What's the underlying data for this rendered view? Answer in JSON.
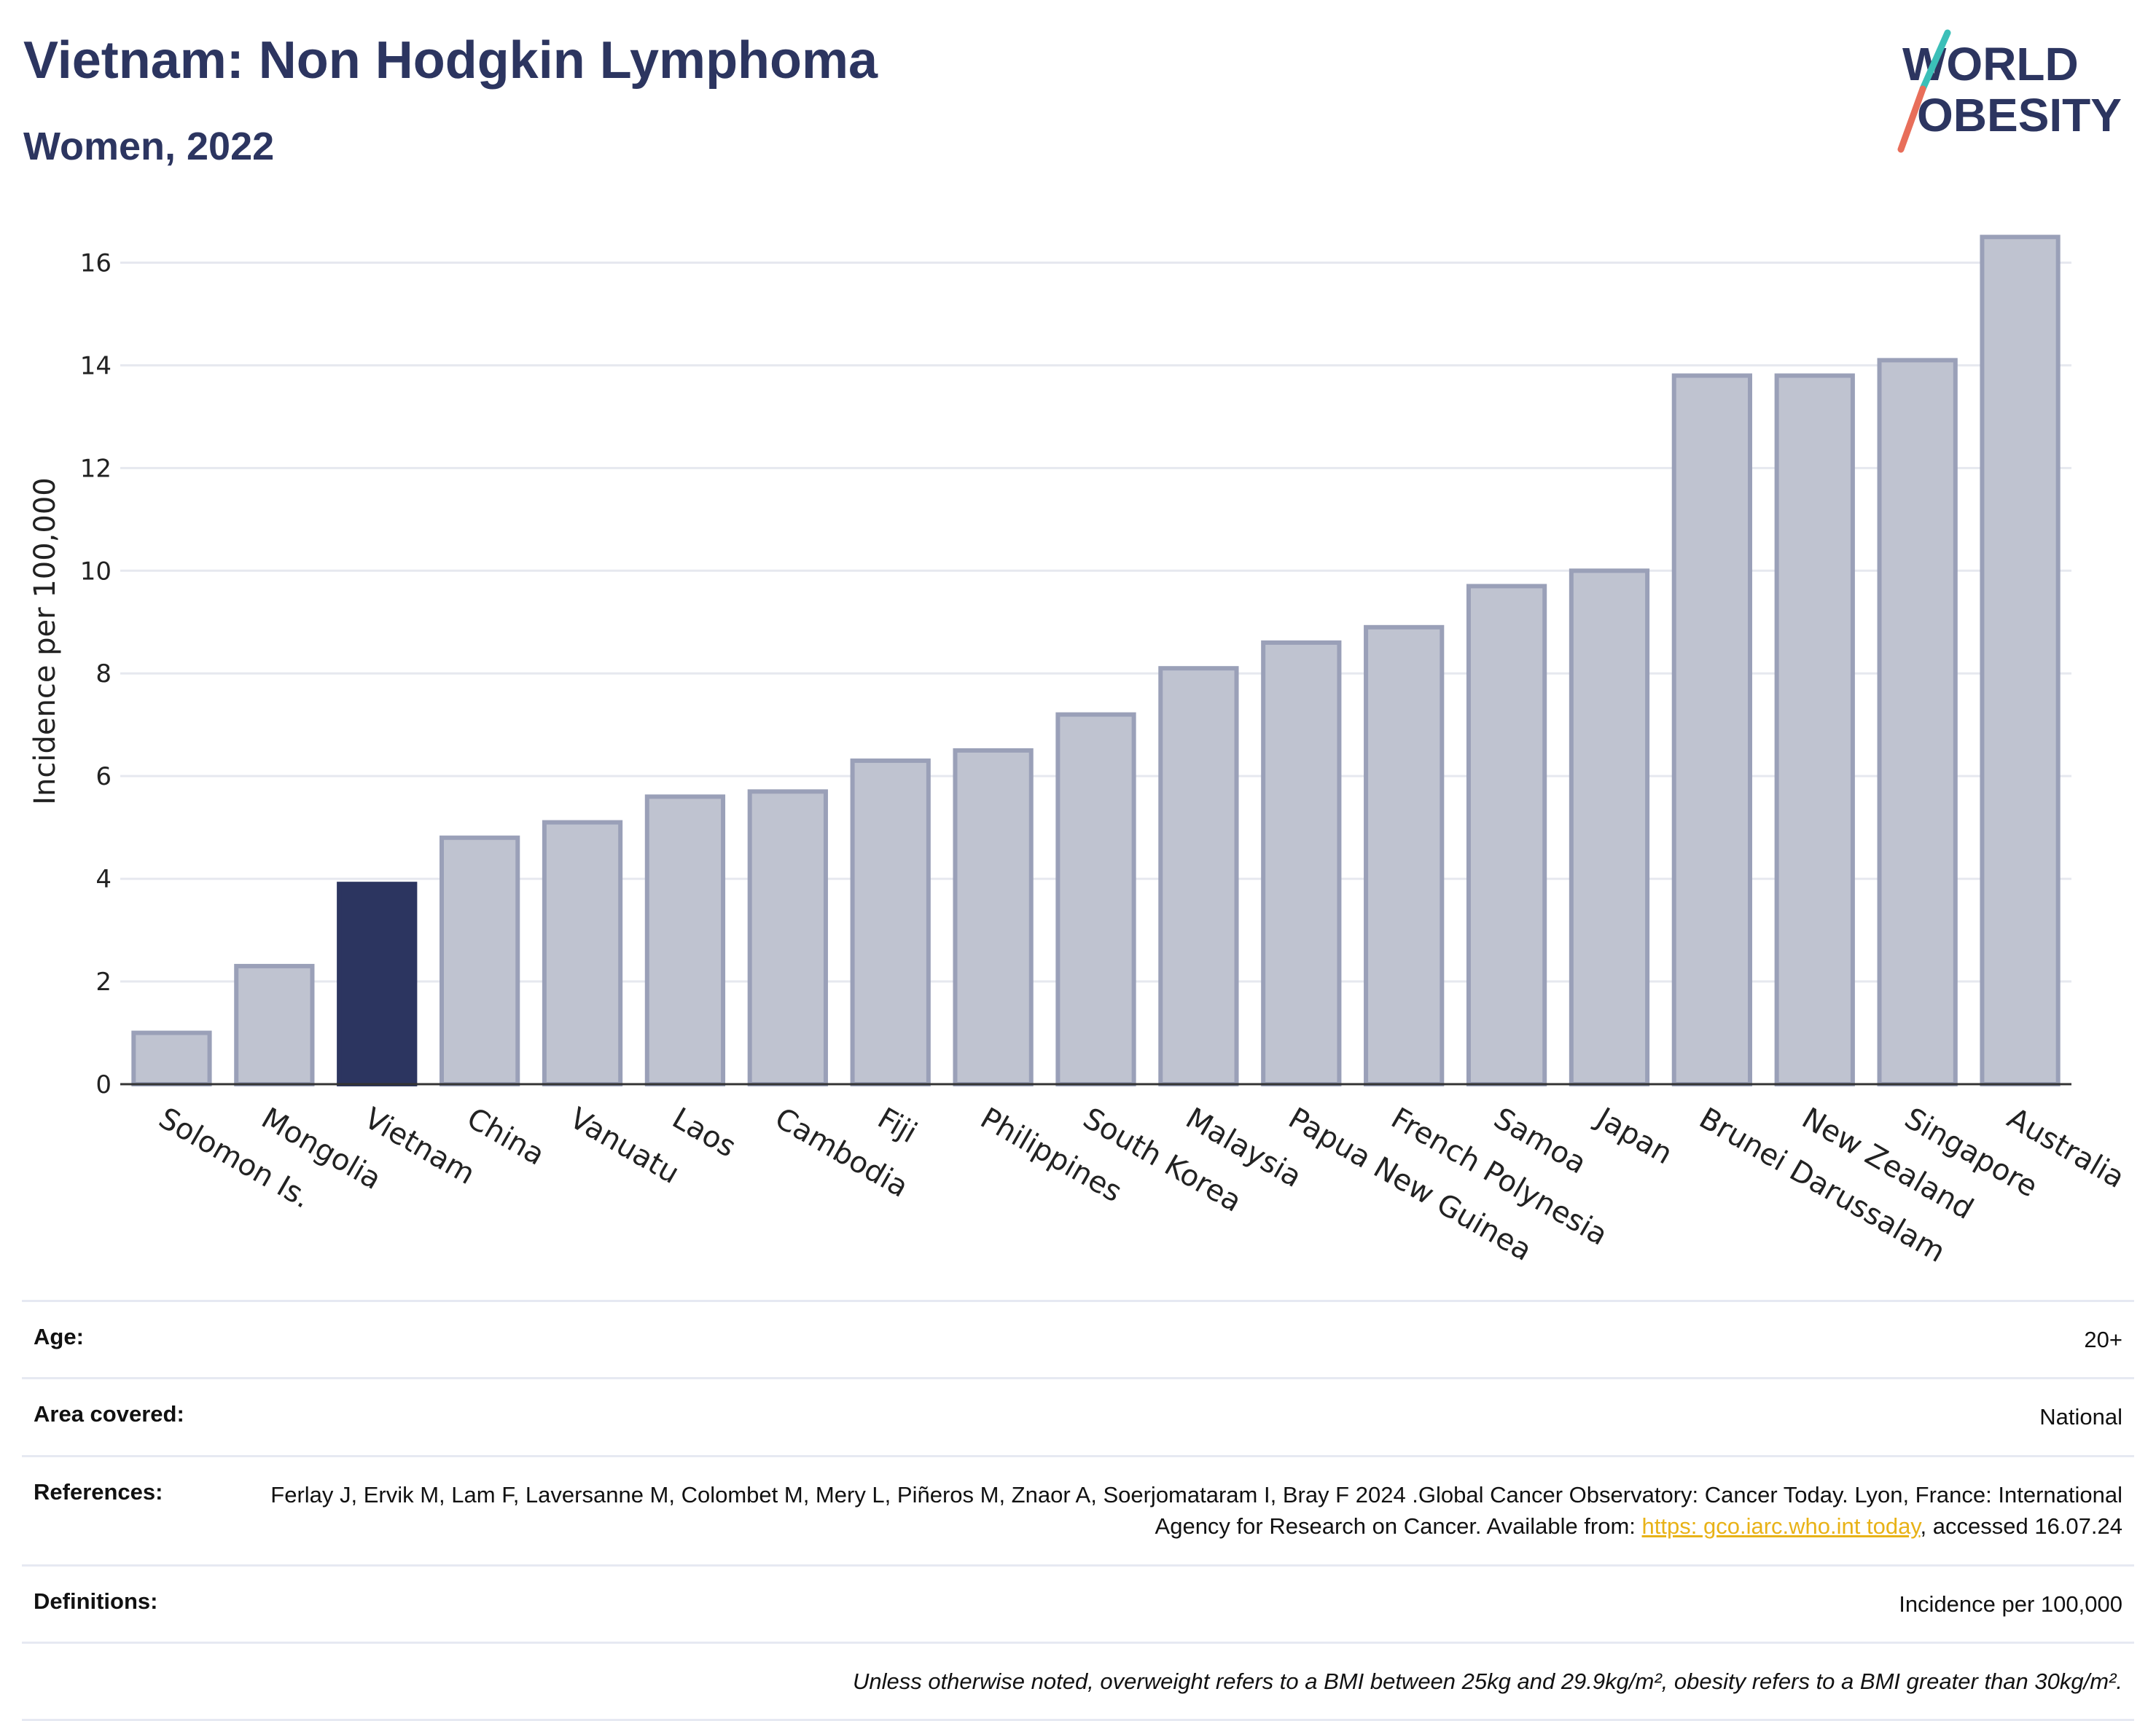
{
  "header": {
    "title": "Vietnam: Non Hodgkin Lymphoma",
    "subtitle": "Women, 2022"
  },
  "logo": {
    "line1": "WORLD",
    "line2": "OBESITY"
  },
  "chart_data": {
    "type": "bar",
    "title": "Vietnam: Non Hodgkin Lymphoma",
    "subtitle": "Women, 2022",
    "xlabel": "",
    "ylabel": "Incidence per 100,000",
    "ylim": [
      0,
      17
    ],
    "yticks": [
      0,
      2,
      4,
      6,
      8,
      10,
      12,
      14,
      16
    ],
    "grid": true,
    "legend": "none",
    "highlight": "Vietnam",
    "colors": {
      "highlight": "#2c3560",
      "bar": "#bfc3d0",
      "bar_edge": "#9aa0b8"
    },
    "categories": [
      "Solomon Is.",
      "Mongolia",
      "Vietnam",
      "China",
      "Vanuatu",
      "Laos",
      "Cambodia",
      "Fiji",
      "Philippines",
      "South Korea",
      "Malaysia",
      "Papua New Guinea",
      "French Polynesia",
      "Samoa",
      "Japan",
      "Brunei Darussalam",
      "New Zealand",
      "Singapore",
      "Australia"
    ],
    "values": [
      1.0,
      2.3,
      3.9,
      4.8,
      5.1,
      5.6,
      5.7,
      6.3,
      6.5,
      7.2,
      8.1,
      8.6,
      8.9,
      9.7,
      10.0,
      13.8,
      13.8,
      14.1,
      16.5
    ]
  },
  "info": {
    "age_label": "Age:",
    "age_value": "20+",
    "area_label": "Area covered:",
    "area_value": "National",
    "references_label": "References:",
    "references_text": "Ferlay J, Ervik M, Lam F, Laversanne M, Colombet M, Mery L, Piñeros M, Znaor A, Soerjomataram I, Bray F  2024 .Global Cancer Observatory: Cancer Today. Lyon, France: International Agency for Research on Cancer. Available from:",
    "references_link": "https:  gco.iarc.who.int today",
    "references_accessed": ", accessed  16.07.24",
    "definitions_label": "Definitions:",
    "definitions_value": "Incidence per 100,000",
    "note": "Unless otherwise noted, overweight refers to a BMI between 25kg and 29.9kg/m², obesity refers to a BMI greater than 30kg/m²."
  }
}
